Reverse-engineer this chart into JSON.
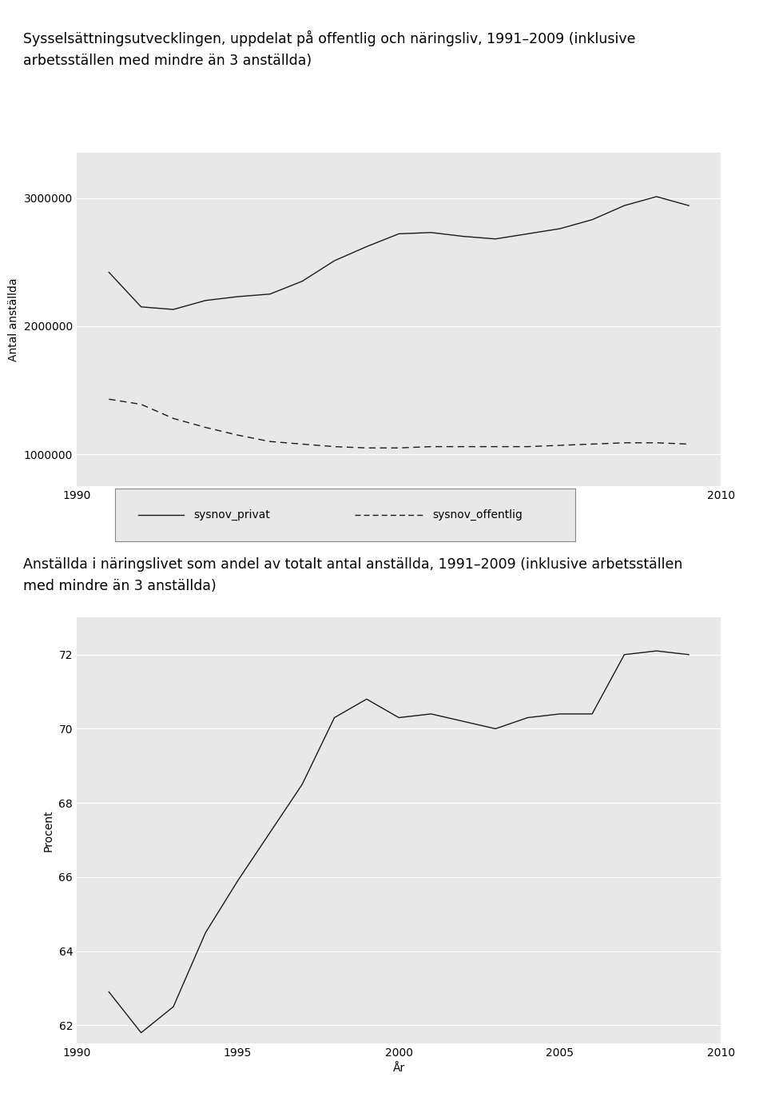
{
  "title1": "Sysselsättningsutvecklingen, uppdelat på offentlig och näringsliv, 1991–2009 (inklusive\narbetsställen med mindre än 3 anställda)",
  "title2": "Anställda i näringslivet som andel av totalt antal anställda, 1991–2009 (inklusive arbetsställen\nmed mindre än 3 anställda)",
  "years": [
    1991,
    1992,
    1993,
    1994,
    1995,
    1996,
    1997,
    1998,
    1999,
    2000,
    2001,
    2002,
    2003,
    2004,
    2005,
    2006,
    2007,
    2008,
    2009
  ],
  "privat": [
    2420000,
    2150000,
    2130000,
    2200000,
    2230000,
    2250000,
    2350000,
    2510000,
    2620000,
    2720000,
    2730000,
    2700000,
    2680000,
    2720000,
    2760000,
    2830000,
    2940000,
    3010000,
    2940000
  ],
  "offentlig": [
    1430000,
    1390000,
    1280000,
    1210000,
    1150000,
    1100000,
    1080000,
    1060000,
    1050000,
    1050000,
    1060000,
    1060000,
    1060000,
    1060000,
    1070000,
    1080000,
    1090000,
    1090000,
    1080000
  ],
  "andel": [
    62.9,
    61.8,
    62.5,
    64.5,
    65.9,
    67.2,
    68.5,
    70.3,
    70.8,
    70.3,
    70.4,
    70.2,
    70.0,
    70.3,
    70.4,
    70.4,
    72.0,
    72.1,
    72.0
  ],
  "ylabel1": "Antal anställda",
  "ylabel2": "Procent",
  "xlabel": "År",
  "legend_privat": "sysnov_privat",
  "legend_offentlig": "sysnov_offentlig",
  "bg_color": "#e8e8e8",
  "line_color": "#1a1a1a",
  "grid_color": "#ffffff",
  "yticks1": [
    1000000,
    2000000,
    3000000
  ],
  "ytick_labels1": [
    "1000000",
    "2000000",
    "3000000"
  ],
  "xticks": [
    1990,
    1995,
    2000,
    2005,
    2010
  ],
  "yticks2": [
    62,
    64,
    66,
    68,
    70,
    72
  ],
  "ylim1": [
    750000,
    3350000
  ],
  "ylim2": [
    61.5,
    73.0
  ],
  "xlim": [
    1990,
    2010
  ]
}
